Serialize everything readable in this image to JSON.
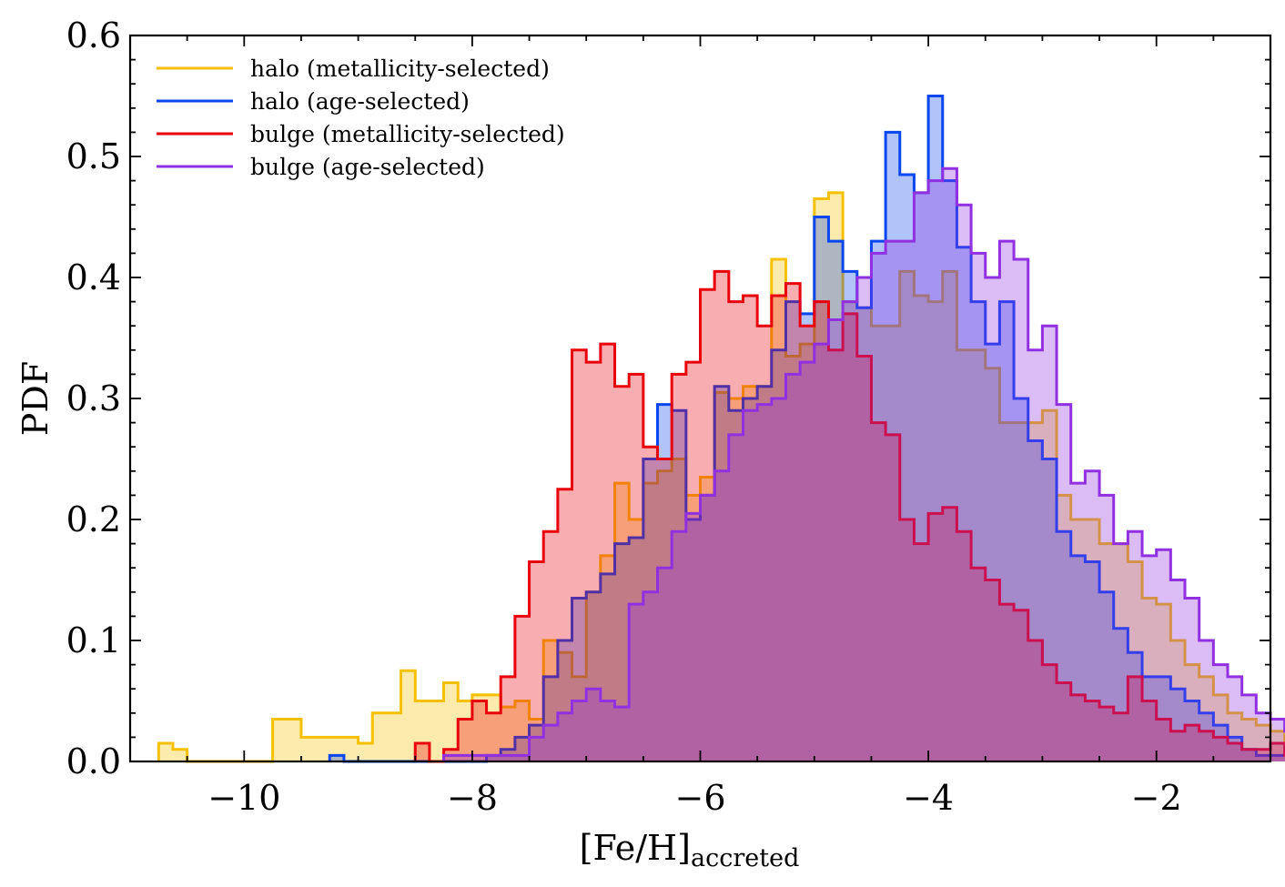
{
  "chart_data": {
    "type": "histogram",
    "title": "",
    "xlabel_main": "[Fe/H]",
    "xlabel_sub": "accreted",
    "ylabel": "PDF",
    "xlim": [
      -11.0,
      -1.0
    ],
    "ylim": [
      0.0,
      0.6
    ],
    "xticks": [
      -10,
      -8,
      -6,
      -4,
      -2
    ],
    "xtick_labels": [
      "−10",
      "−8",
      "−6",
      "−4",
      "−2"
    ],
    "yticks": [
      0.0,
      0.1,
      0.2,
      0.3,
      0.4,
      0.5,
      0.6
    ],
    "ytick_labels": [
      "0.0",
      "0.1",
      "0.2",
      "0.3",
      "0.4",
      "0.5",
      "0.6"
    ],
    "grid": false,
    "legend_position": "top-left",
    "bin_width": 0.125,
    "series": [
      {
        "name": "halo (metallicity-selected)",
        "color": "#f5c000",
        "x_start": -10.75,
        "values": [
          0.015,
          0.01,
          0,
          0,
          0,
          0,
          0,
          0,
          0.035,
          0.035,
          0.02,
          0.02,
          0.02,
          0.02,
          0.015,
          0.04,
          0.04,
          0.075,
          0.05,
          0.05,
          0.065,
          0.05,
          0.055,
          0.055,
          0.045,
          0.05,
          0.035,
          0.1,
          0.09,
          0.07,
          0.14,
          0.17,
          0.23,
          0.2,
          0.23,
          0.24,
          0.25,
          0.22,
          0.235,
          0.305,
          0.3,
          0.31,
          0.31,
          0.415,
          0.335,
          0.345,
          0.465,
          0.47,
          0.38,
          0.375,
          0.36,
          0.36,
          0.405,
          0.385,
          0.38,
          0.405,
          0.34,
          0.34,
          0.325,
          0.28,
          0.28,
          0.28,
          0.29,
          0.22,
          0.2,
          0.2,
          0.18,
          0.18,
          0.165,
          0.135,
          0.13,
          0.1,
          0.08,
          0.07,
          0.055,
          0.04,
          0.035,
          0.03,
          0.025,
          0.015,
          0.015,
          0.015,
          0.015,
          0.015,
          0.01,
          0.01,
          0.005,
          0.005,
          0.005
        ]
      },
      {
        "name": "halo (age-selected)",
        "color": "#0a46f0",
        "x_start": -9.25,
        "values": [
          0.005,
          0,
          0,
          0,
          0,
          0,
          0,
          0,
          0,
          0,
          0,
          0.005,
          0.01,
          0.02,
          0.03,
          0.07,
          0.1,
          0.135,
          0.14,
          0.155,
          0.18,
          0.185,
          0.25,
          0.295,
          0.29,
          0.2,
          0.22,
          0.31,
          0.29,
          0.3,
          0.31,
          0.34,
          0.38,
          0.37,
          0.45,
          0.43,
          0.405,
          0.375,
          0.43,
          0.52,
          0.485,
          0.47,
          0.55,
          0.48,
          0.425,
          0.38,
          0.345,
          0.38,
          0.3,
          0.265,
          0.25,
          0.19,
          0.17,
          0.165,
          0.14,
          0.11,
          0.09,
          0.07,
          0.07,
          0.06,
          0.05,
          0.04,
          0.03,
          0.02,
          0.01,
          0.005,
          0.005,
          0.005,
          0.005
        ]
      },
      {
        "name": "bulge (metallicity-selected)",
        "color": "#e8000b",
        "x_start": -8.5,
        "values": [
          0.015,
          0,
          0.01,
          0.035,
          0.05,
          0.04,
          0.07,
          0.12,
          0.165,
          0.19,
          0.225,
          0.34,
          0.33,
          0.345,
          0.31,
          0.32,
          0.26,
          0.25,
          0.32,
          0.33,
          0.39,
          0.405,
          0.38,
          0.385,
          0.36,
          0.385,
          0.395,
          0.36,
          0.38,
          0.34,
          0.37,
          0.335,
          0.28,
          0.27,
          0.2,
          0.18,
          0.205,
          0.21,
          0.19,
          0.16,
          0.15,
          0.13,
          0.125,
          0.1,
          0.08,
          0.065,
          0.055,
          0.05,
          0.045,
          0.04,
          0.07,
          0.05,
          0.035,
          0.025,
          0.03,
          0.025,
          0.02,
          0.015,
          0.01,
          0.01,
          0.015,
          0.005,
          0.005,
          0.005,
          0.005,
          0.005,
          0.005,
          0.005,
          0.005,
          0.005,
          0.005,
          0.005
        ]
      },
      {
        "name": "bulge (age-selected)",
        "color": "#9030e0",
        "x_start": -8.25,
        "values": [
          0.005,
          0.005,
          0.005,
          0.005,
          0.005,
          0.005,
          0.02,
          0.03,
          0.04,
          0.05,
          0.06,
          0.05,
          0.045,
          0.13,
          0.14,
          0.16,
          0.19,
          0.205,
          0.22,
          0.24,
          0.27,
          0.29,
          0.295,
          0.3,
          0.32,
          0.33,
          0.345,
          0.365,
          0.38,
          0.4,
          0.42,
          0.43,
          0.43,
          0.47,
          0.48,
          0.49,
          0.46,
          0.42,
          0.4,
          0.43,
          0.415,
          0.34,
          0.36,
          0.295,
          0.23,
          0.24,
          0.22,
          0.18,
          0.19,
          0.17,
          0.175,
          0.15,
          0.135,
          0.1,
          0.08,
          0.07,
          0.055,
          0.04,
          0.035,
          0.025,
          0.02,
          0.015,
          0.01,
          0.005,
          0.005,
          0.005,
          0.005,
          0.005
        ]
      }
    ],
    "fill_opacity": 0.32
  }
}
